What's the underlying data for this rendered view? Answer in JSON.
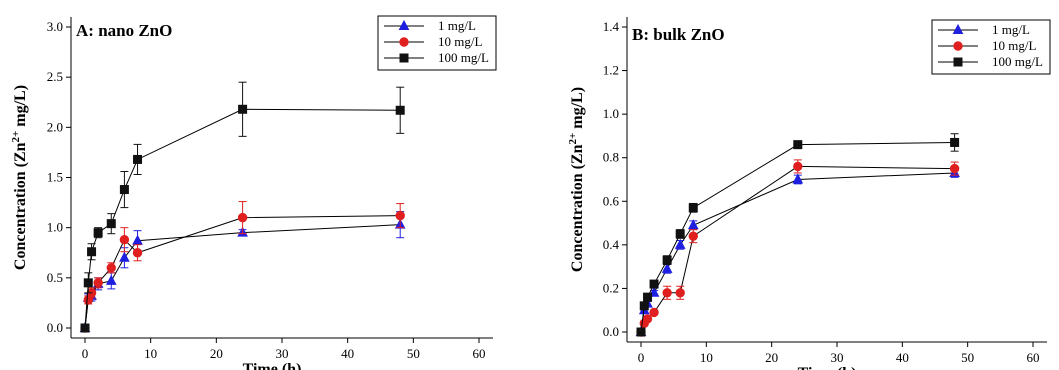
{
  "chart_data": [
    {
      "type": "line",
      "title": "A: nano ZnO",
      "xlabel": "Time (h)",
      "ylabel": "Concentration (Zn2+ mg/L)",
      "ylabel_parts": {
        "main": "Concentration (Zn",
        "sup": "2+",
        "tail": " mg/L)"
      },
      "xlim": [
        0,
        60
      ],
      "ylim": [
        0,
        3.0
      ],
      "xticks": [
        "0",
        "10",
        "20",
        "30",
        "40",
        "50",
        "60"
      ],
      "yticks": [
        "0.0",
        "0.5",
        "1.0",
        "1.5",
        "2.0",
        "2.5",
        "3.0"
      ],
      "grid": false,
      "legend": "top-right",
      "series": [
        {
          "name": "1 mg/L",
          "color": "#1f1fe0",
          "marker": "triangle",
          "x": [
            0,
            0.5,
            1,
            2,
            4,
            6,
            8,
            24,
            48
          ],
          "y": [
            0,
            0.3,
            0.32,
            0.44,
            0.47,
            0.7,
            0.87,
            0.95,
            1.03
          ],
          "err": [
            0,
            0.04,
            0.05,
            0.06,
            0.08,
            0.1,
            0.1,
            0.03,
            0.13
          ]
        },
        {
          "name": "10 mg/L",
          "color": "#e01f1f",
          "marker": "circle",
          "x": [
            0,
            0.5,
            1,
            2,
            4,
            6,
            8,
            24,
            48
          ],
          "y": [
            0,
            0.28,
            0.35,
            0.45,
            0.6,
            0.88,
            0.75,
            1.1,
            1.12
          ],
          "err": [
            0,
            0.04,
            0.05,
            0.05,
            0.05,
            0.12,
            0.08,
            0.16,
            0.12
          ]
        },
        {
          "name": "100 mg/L",
          "color": "#111111",
          "marker": "square",
          "x": [
            0,
            0.5,
            1,
            2,
            4,
            6,
            8,
            24,
            48
          ],
          "y": [
            0,
            0.45,
            0.76,
            0.95,
            1.04,
            1.38,
            1.68,
            2.18,
            2.17
          ],
          "err": [
            0,
            0.1,
            0.08,
            0.05,
            0.1,
            0.18,
            0.15,
            0.27,
            0.23
          ]
        }
      ]
    },
    {
      "type": "line",
      "title": "B: bulk ZnO",
      "xlabel": "Time (h)",
      "ylabel": "Concentration (Zn2+ mg/L)",
      "ylabel_parts": {
        "main": "Concentration (Zn",
        "sup": "2+",
        "tail": " mg/L)"
      },
      "xlim": [
        0,
        60
      ],
      "ylim": [
        0,
        1.4
      ],
      "xticks": [
        "0",
        "10",
        "20",
        "30",
        "40",
        "50",
        "60"
      ],
      "yticks": [
        "0.0",
        "0.2",
        "0.4",
        "0.6",
        "0.8",
        "1.0",
        "1.2",
        "1.4"
      ],
      "grid": false,
      "legend": "top-right",
      "series": [
        {
          "name": "1 mg/L",
          "color": "#1f1fe0",
          "marker": "triangle",
          "x": [
            0,
            0.5,
            1,
            2,
            4,
            6,
            8,
            24,
            48
          ],
          "y": [
            0,
            0.1,
            0.13,
            0.18,
            0.29,
            0.4,
            0.49,
            0.7,
            0.73
          ],
          "err": [
            0,
            0.01,
            0.01,
            0.01,
            0.02,
            0.02,
            0.02,
            0.02,
            0.02
          ]
        },
        {
          "name": "10 mg/L",
          "color": "#e01f1f",
          "marker": "circle",
          "x": [
            0,
            0.5,
            1,
            2,
            4,
            6,
            8,
            24,
            48
          ],
          "y": [
            0,
            0.04,
            0.06,
            0.09,
            0.18,
            0.18,
            0.44,
            0.76,
            0.75
          ],
          "err": [
            0,
            0.01,
            0.01,
            0.01,
            0.03,
            0.03,
            0.03,
            0.03,
            0.03
          ]
        },
        {
          "name": "100 mg/L",
          "color": "#111111",
          "marker": "square",
          "x": [
            0,
            0.5,
            1,
            2,
            4,
            6,
            8,
            24,
            48
          ],
          "y": [
            0,
            0.12,
            0.16,
            0.22,
            0.33,
            0.45,
            0.57,
            0.86,
            0.87
          ],
          "err": [
            0,
            0.01,
            0.01,
            0.01,
            0.02,
            0.02,
            0.02,
            0.01,
            0.04
          ]
        }
      ]
    }
  ]
}
